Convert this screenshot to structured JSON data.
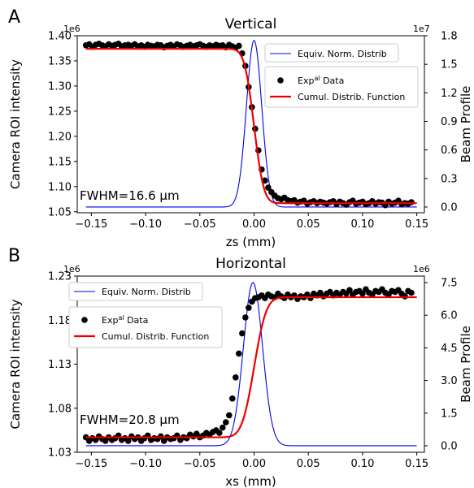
{
  "chart_data": [
    {
      "type": "line",
      "panel_label": "A",
      "title": "Vertical",
      "xlabel": "zs (mm)",
      "ylabel": "Camera ROI intensity",
      "y2label": "Beam Profile",
      "xlim": [
        -0.163,
        0.157
      ],
      "ylim": [
        1.048,
        1.4
      ],
      "y2lim": [
        -0.06,
        1.8
      ],
      "y_offset_text": "1e6",
      "y2_offset_text": "1e7",
      "xticks": [
        -0.15,
        -0.1,
        -0.05,
        0.0,
        0.05,
        0.1,
        0.15
      ],
      "xtick_labels": [
        "−0.15",
        "−0.10",
        "−0.05",
        "0.00",
        "0.05",
        "0.10",
        "0.15"
      ],
      "yticks": [
        1.05,
        1.1,
        1.15,
        1.2,
        1.25,
        1.3,
        1.35,
        1.4
      ],
      "ytick_labels": [
        "1.05",
        "1.10",
        "1.15",
        "1.20",
        "1.25",
        "1.30",
        "1.35",
        "1.40"
      ],
      "y2ticks": [
        0.0,
        0.3,
        0.6,
        0.9,
        1.2,
        1.5,
        1.8
      ],
      "y2tick_labels": [
        "0.0",
        "0.3",
        "0.6",
        "0.9",
        "1.2",
        "1.5",
        "1.8"
      ],
      "legend_position": "top-right",
      "annotation": "FWHM=16.6 µm",
      "series": [
        {
          "name": "Equiv. Norm. Distrib",
          "kind": "gaussian",
          "axis": "right",
          "center": 0.0,
          "fwhm": 0.0166,
          "base": 0.0,
          "amplitude": 1.75,
          "color": "#0000ee"
        },
        {
          "name": "Exp^al Data",
          "kind": "points",
          "axis": "left",
          "color": "#000000",
          "x_start": -0.155,
          "x_step": 0.003,
          "y": [
            1.381,
            1.383,
            1.378,
            1.382,
            1.384,
            1.381,
            1.379,
            1.383,
            1.38,
            1.382,
            1.384,
            1.379,
            1.381,
            1.382,
            1.38,
            1.383,
            1.379,
            1.381,
            1.378,
            1.382,
            1.38,
            1.379,
            1.382,
            1.381,
            1.377,
            1.38,
            1.382,
            1.379,
            1.383,
            1.381,
            1.378,
            1.38,
            1.382,
            1.379,
            1.381,
            1.383,
            1.38,
            1.378,
            1.381,
            1.379,
            1.382,
            1.38,
            1.381,
            1.377,
            1.382,
            1.379,
            1.376,
            1.38,
            1.365,
            1.34,
            1.298,
            1.258,
            1.215,
            1.172,
            1.134,
            1.112,
            1.098,
            1.089,
            1.082,
            1.077,
            1.075,
            1.078,
            1.073,
            1.071,
            1.073,
            1.068,
            1.07,
            1.072,
            1.066,
            1.069,
            1.071,
            1.067,
            1.07,
            1.068,
            1.066,
            1.069,
            1.071,
            1.065,
            1.07,
            1.067,
            1.064,
            1.069,
            1.072,
            1.066,
            1.068,
            1.07,
            1.065,
            1.067,
            1.071,
            1.066,
            1.069,
            1.068,
            1.063,
            1.07,
            1.066,
            1.068,
            1.072,
            1.065,
            1.067,
            1.066,
            1.069
          ]
        },
        {
          "name": "Cumul. Distrib. Function",
          "kind": "cdf",
          "axis": "left",
          "center": 0.0,
          "fwhm": 0.0166,
          "start": 1.374,
          "end": 1.067,
          "color": "#ee0000"
        }
      ]
    },
    {
      "type": "line",
      "panel_label": "B",
      "title": "Horizontal",
      "xlabel": "xs (mm)",
      "ylabel": "Camera ROI intensity",
      "y2label": "Beam Profile",
      "xlim": [
        -0.163,
        0.157
      ],
      "ylim": [
        1.03,
        1.23
      ],
      "y2lim": [
        -0.3,
        7.8
      ],
      "y_offset_text": "1e6",
      "y2_offset_text": "1e6",
      "xticks": [
        -0.15,
        -0.1,
        -0.05,
        0.0,
        0.05,
        0.1,
        0.15
      ],
      "xtick_labels": [
        "−0.15",
        "−0.10",
        "−0.05",
        "0.00",
        "0.05",
        "0.10",
        "0.15"
      ],
      "yticks": [
        1.03,
        1.08,
        1.13,
        1.18,
        1.23
      ],
      "ytick_labels": [
        "1.03",
        "1.08",
        "1.13",
        "1.18",
        "1.23"
      ],
      "y2ticks": [
        0.0,
        1.5,
        3.0,
        4.5,
        6.0,
        7.5
      ],
      "y2tick_labels": [
        "0.0",
        "1.5",
        "3.0",
        "4.5",
        "6.0",
        "7.5"
      ],
      "legend_position": "top-left",
      "annotation": "FWHM=20.8 µm",
      "series": [
        {
          "name": "Equiv. Norm. Distrib",
          "kind": "gaussian",
          "axis": "right",
          "center": -0.001,
          "fwhm": 0.0208,
          "base": 0.0,
          "amplitude": 7.5,
          "color": "#0000ee"
        },
        {
          "name": "Exp^al Data",
          "kind": "points",
          "axis": "left",
          "color": "#000000",
          "x_start": -0.155,
          "x_step": 0.003,
          "y": [
            1.047,
            1.043,
            1.046,
            1.044,
            1.048,
            1.045,
            1.043,
            1.047,
            1.044,
            1.046,
            1.049,
            1.044,
            1.046,
            1.043,
            1.048,
            1.045,
            1.047,
            1.043,
            1.046,
            1.049,
            1.044,
            1.046,
            1.045,
            1.048,
            1.043,
            1.047,
            1.045,
            1.046,
            1.049,
            1.044,
            1.047,
            1.046,
            1.05,
            1.048,
            1.051,
            1.047,
            1.049,
            1.052,
            1.05,
            1.053,
            1.055,
            1.052,
            1.058,
            1.064,
            1.072,
            1.091,
            1.115,
            1.142,
            1.165,
            1.183,
            1.194,
            1.201,
            1.205,
            1.206,
            1.208,
            1.205,
            1.209,
            1.207,
            1.206,
            1.21,
            1.207,
            1.205,
            1.209,
            1.206,
            1.208,
            1.204,
            1.207,
            1.206,
            1.209,
            1.205,
            1.21,
            1.208,
            1.211,
            1.207,
            1.21,
            1.212,
            1.208,
            1.211,
            1.209,
            1.212,
            1.21,
            1.214,
            1.209,
            1.212,
            1.213,
            1.21,
            1.215,
            1.211,
            1.209,
            1.213,
            1.212,
            1.215,
            1.211,
            1.209,
            1.213,
            1.212,
            1.214,
            1.21,
            1.207,
            1.213,
            1.211
          ]
        },
        {
          "name": "Cumul. Distrib. Function",
          "kind": "cdf",
          "axis": "left",
          "center": 0.0,
          "fwhm": 0.0208,
          "start": 1.047,
          "end": 1.206,
          "color": "#ee0000"
        }
      ]
    }
  ]
}
